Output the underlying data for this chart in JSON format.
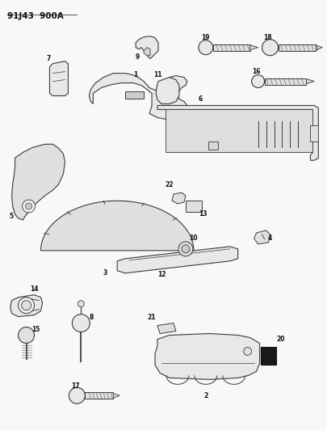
{
  "title": "91J43 900A",
  "bg": "#f5f5f5",
  "lc": "#444444",
  "fig_width": 4.05,
  "fig_height": 5.33,
  "dpi": 100
}
